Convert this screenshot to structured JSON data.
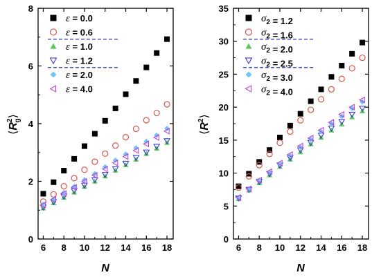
{
  "chart_data": [
    {
      "type": "scatter",
      "xlabel": "N",
      "ylabel": "⟨R_g^2⟩",
      "xlim": [
        5.5,
        18.6
      ],
      "ylim": [
        0,
        8
      ],
      "xticks": [
        6,
        8,
        10,
        12,
        14,
        16,
        18
      ],
      "yticks": [
        0,
        2,
        4,
        6,
        8
      ],
      "legend_position": "top-left",
      "legend_symbol": "ε",
      "x": [
        6,
        7,
        8,
        9,
        10,
        11,
        12,
        13,
        14,
        15,
        16,
        17,
        18
      ],
      "series": [
        {
          "name": "0.0",
          "marker": "filled-square",
          "color": "#000000",
          "values": [
            1.57,
            1.97,
            2.37,
            2.78,
            3.22,
            3.65,
            4.1,
            4.53,
            5.02,
            5.48,
            5.95,
            6.45,
            6.93
          ]
        },
        {
          "name": "0.6",
          "marker": "open-circle",
          "color": "#d9534f",
          "values": [
            1.3,
            1.55,
            1.83,
            2.11,
            2.4,
            2.68,
            2.96,
            3.24,
            3.53,
            3.82,
            4.12,
            4.37,
            4.67
          ]
        },
        {
          "name": "1.0",
          "marker": "filled-triangle-up",
          "color": "#5cc85c",
          "values": [
            1.07,
            1.25,
            1.44,
            1.62,
            1.82,
            2.0,
            2.18,
            2.38,
            2.57,
            2.76,
            2.96,
            3.14,
            3.34
          ]
        },
        {
          "name": "1.2",
          "marker": "open-triangle-down",
          "color": "#3a3ad0",
          "values": [
            1.1,
            1.29,
            1.48,
            1.67,
            1.86,
            2.05,
            2.23,
            2.43,
            2.62,
            2.82,
            3.01,
            3.21,
            3.4
          ]
        },
        {
          "name": "2.0",
          "marker": "filled-diamond",
          "color": "#6ec6ff",
          "values": [
            1.2,
            1.38,
            1.61,
            1.82,
            2.05,
            2.26,
            2.5,
            2.73,
            2.94,
            3.16,
            3.38,
            3.6,
            3.83
          ]
        },
        {
          "name": "4.0",
          "marker": "open-triangle-left",
          "color": "#c040d0",
          "values": [
            1.18,
            1.37,
            1.58,
            1.79,
            2.0,
            2.21,
            2.43,
            2.64,
            2.86,
            3.07,
            3.3,
            3.52,
            3.74
          ]
        }
      ]
    },
    {
      "type": "scatter",
      "xlabel": "N",
      "ylabel": "⟨R^2⟩",
      "xlim": [
        5.5,
        18.6
      ],
      "ylim": [
        0,
        35
      ],
      "xticks": [
        6,
        8,
        10,
        12,
        14,
        16,
        18
      ],
      "yticks": [
        0,
        5,
        10,
        15,
        20,
        25,
        30,
        35
      ],
      "legend_position": "top-left",
      "legend_symbol": "σ₂",
      "x": [
        6,
        7,
        8,
        9,
        10,
        11,
        12,
        13,
        14,
        15,
        16,
        17,
        18
      ],
      "series": [
        {
          "name": "1.2",
          "marker": "filled-square",
          "color": "#000000",
          "values": [
            8.0,
            9.9,
            11.7,
            13.5,
            15.4,
            17.2,
            19.0,
            20.9,
            22.7,
            24.6,
            26.3,
            28.1,
            29.8
          ]
        },
        {
          "name": "1.6",
          "marker": "open-circle",
          "color": "#d9534f",
          "values": [
            7.8,
            9.5,
            11.2,
            12.9,
            14.6,
            16.3,
            18.0,
            19.6,
            21.2,
            22.7,
            24.3,
            25.9,
            27.5
          ]
        },
        {
          "name": "2.0",
          "marker": "filled-triangle-up",
          "color": "#5cc85c",
          "values": [
            6.1,
            7.4,
            8.5,
            9.7,
            11.0,
            12.1,
            13.2,
            14.4,
            15.4,
            16.5,
            17.4,
            18.5,
            19.4
          ]
        },
        {
          "name": "2.5",
          "marker": "open-triangle-down",
          "color": "#3a3ad0",
          "values": [
            6.2,
            7.5,
            8.7,
            9.9,
            11.2,
            12.3,
            13.5,
            14.6,
            15.7,
            16.8,
            17.8,
            18.9,
            19.8
          ]
        },
        {
          "name": "3.0",
          "marker": "filled-diamond",
          "color": "#6ec6ff",
          "values": [
            6.3,
            7.6,
            8.9,
            10.1,
            11.4,
            12.6,
            13.9,
            15.1,
            16.3,
            17.5,
            18.6,
            19.8,
            20.8
          ]
        },
        {
          "name": "4.0",
          "marker": "open-triangle-left",
          "color": "#c040d0",
          "values": [
            6.3,
            7.6,
            8.9,
            10.2,
            11.5,
            12.8,
            14.1,
            15.3,
            16.5,
            17.7,
            18.9,
            20.0,
            21.1
          ]
        }
      ]
    }
  ]
}
